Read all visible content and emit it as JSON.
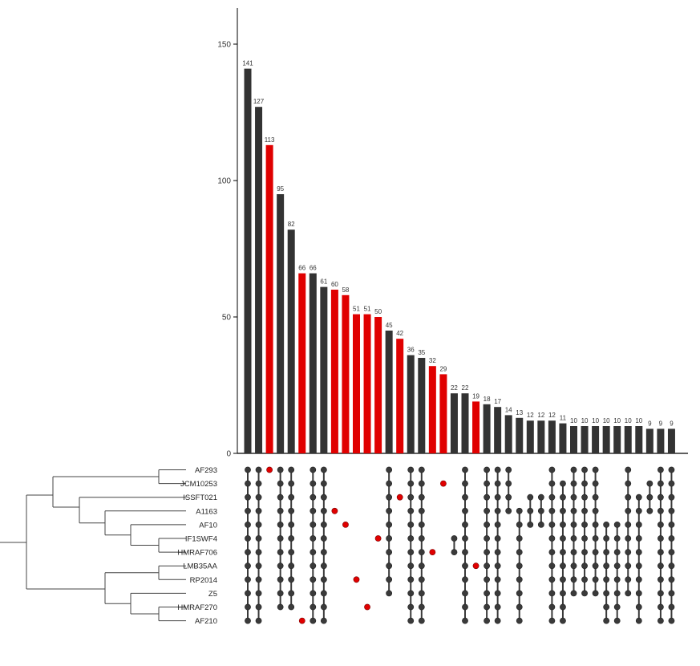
{
  "chart_data": {
    "type": "bar",
    "kind": "upset",
    "ylim": [
      0,
      160
    ],
    "yticks": [
      0,
      50,
      100,
      150
    ],
    "colors": {
      "bar": "#333333",
      "highlight": "#e00000",
      "dot": "#3a3a3a",
      "tree": "#444444"
    },
    "sets": [
      "AF293",
      "JCM10253",
      "ISSFT021",
      "A1163",
      "AF10",
      "IF1SWF4",
      "HMRAF706",
      "LMB35AA",
      "RP2014",
      "Z5",
      "HMRAF270",
      "AF210"
    ],
    "values": [
      141,
      127,
      113,
      95,
      82,
      66,
      66,
      61,
      60,
      58,
      51,
      51,
      50,
      45,
      42,
      36,
      35,
      32,
      29,
      22,
      22,
      19,
      18,
      17,
      14,
      13,
      12,
      12,
      12,
      11,
      10,
      10,
      10,
      10,
      10,
      10,
      10,
      9,
      9,
      9
    ],
    "highlighted": [
      false,
      false,
      true,
      false,
      false,
      true,
      false,
      false,
      true,
      true,
      true,
      true,
      true,
      false,
      true,
      false,
      false,
      true,
      true,
      false,
      false,
      true,
      false,
      false,
      false,
      false,
      false,
      false,
      false,
      false,
      false,
      false,
      false,
      false,
      false,
      false,
      false,
      false,
      false,
      false
    ],
    "memberships": [
      [
        0,
        1,
        2,
        3,
        4,
        5,
        6,
        7,
        8,
        9,
        10,
        11
      ],
      [
        0,
        1,
        2,
        3,
        4,
        5,
        6,
        7,
        8,
        9,
        10,
        11
      ],
      [
        0
      ],
      [
        0,
        1,
        2,
        3,
        4,
        5,
        6,
        7,
        8,
        9,
        10
      ],
      [
        0,
        1,
        2,
        3,
        4,
        5,
        6,
        7,
        8,
        9,
        10
      ],
      [
        11
      ],
      [
        0,
        1,
        2,
        3,
        4,
        5,
        6,
        7,
        8,
        9,
        10,
        11
      ],
      [
        0,
        1,
        2,
        3,
        4,
        5,
        6,
        7,
        8,
        9,
        10,
        11
      ],
      [
        3
      ],
      [
        4
      ],
      [
        8
      ],
      [
        10
      ],
      [
        5
      ],
      [
        0,
        1,
        2,
        3,
        4,
        5,
        6,
        7,
        8,
        9
      ],
      [
        2
      ],
      [
        0,
        1,
        2,
        3,
        4,
        5,
        6,
        7,
        8,
        9,
        10,
        11
      ],
      [
        0,
        1,
        2,
        3,
        4,
        5,
        6,
        7,
        8,
        9,
        10,
        11
      ],
      [
        6
      ],
      [
        1
      ],
      [
        5,
        6
      ],
      [
        0,
        1,
        2,
        3,
        4,
        5,
        6,
        7,
        8,
        9,
        10,
        11
      ],
      [
        7
      ],
      [
        0,
        1,
        2,
        3,
        4,
        5,
        6,
        7,
        8,
        9,
        10,
        11
      ],
      [
        0,
        1,
        2,
        3,
        4,
        5,
        6,
        7,
        8,
        9,
        10,
        11
      ],
      [
        0,
        1,
        2,
        3
      ],
      [
        3,
        4,
        5,
        6,
        7,
        8,
        9,
        10,
        11
      ],
      [
        2,
        3,
        4
      ],
      [
        2,
        3,
        4
      ],
      [
        0,
        1,
        2,
        3,
        4,
        5,
        6,
        7,
        8,
        9,
        10,
        11
      ],
      [
        1,
        2,
        3,
        4,
        5,
        6,
        7,
        8,
        9,
        10,
        11
      ],
      [
        0,
        1,
        2,
        3,
        4,
        5,
        6,
        7,
        8,
        9
      ],
      [
        0,
        1,
        2,
        3,
        4,
        5,
        6,
        7,
        8,
        9
      ],
      [
        0,
        1,
        2,
        3,
        4,
        5,
        6,
        7,
        8,
        9
      ],
      [
        4,
        5,
        6,
        7,
        8,
        9,
        10,
        11
      ],
      [
        4,
        5,
        6,
        7,
        8,
        9,
        10,
        11
      ],
      [
        0,
        1,
        2,
        3,
        4,
        5,
        6,
        7,
        8,
        9
      ],
      [
        2,
        3,
        4,
        5,
        6,
        7,
        8,
        9,
        10,
        11
      ],
      [
        1,
        2,
        3
      ],
      [
        0,
        1,
        2,
        3,
        4,
        5,
        6,
        7,
        8,
        9,
        10,
        11
      ],
      [
        0,
        1,
        2,
        3,
        4,
        5,
        6,
        7,
        8,
        9,
        10,
        11
      ]
    ]
  }
}
